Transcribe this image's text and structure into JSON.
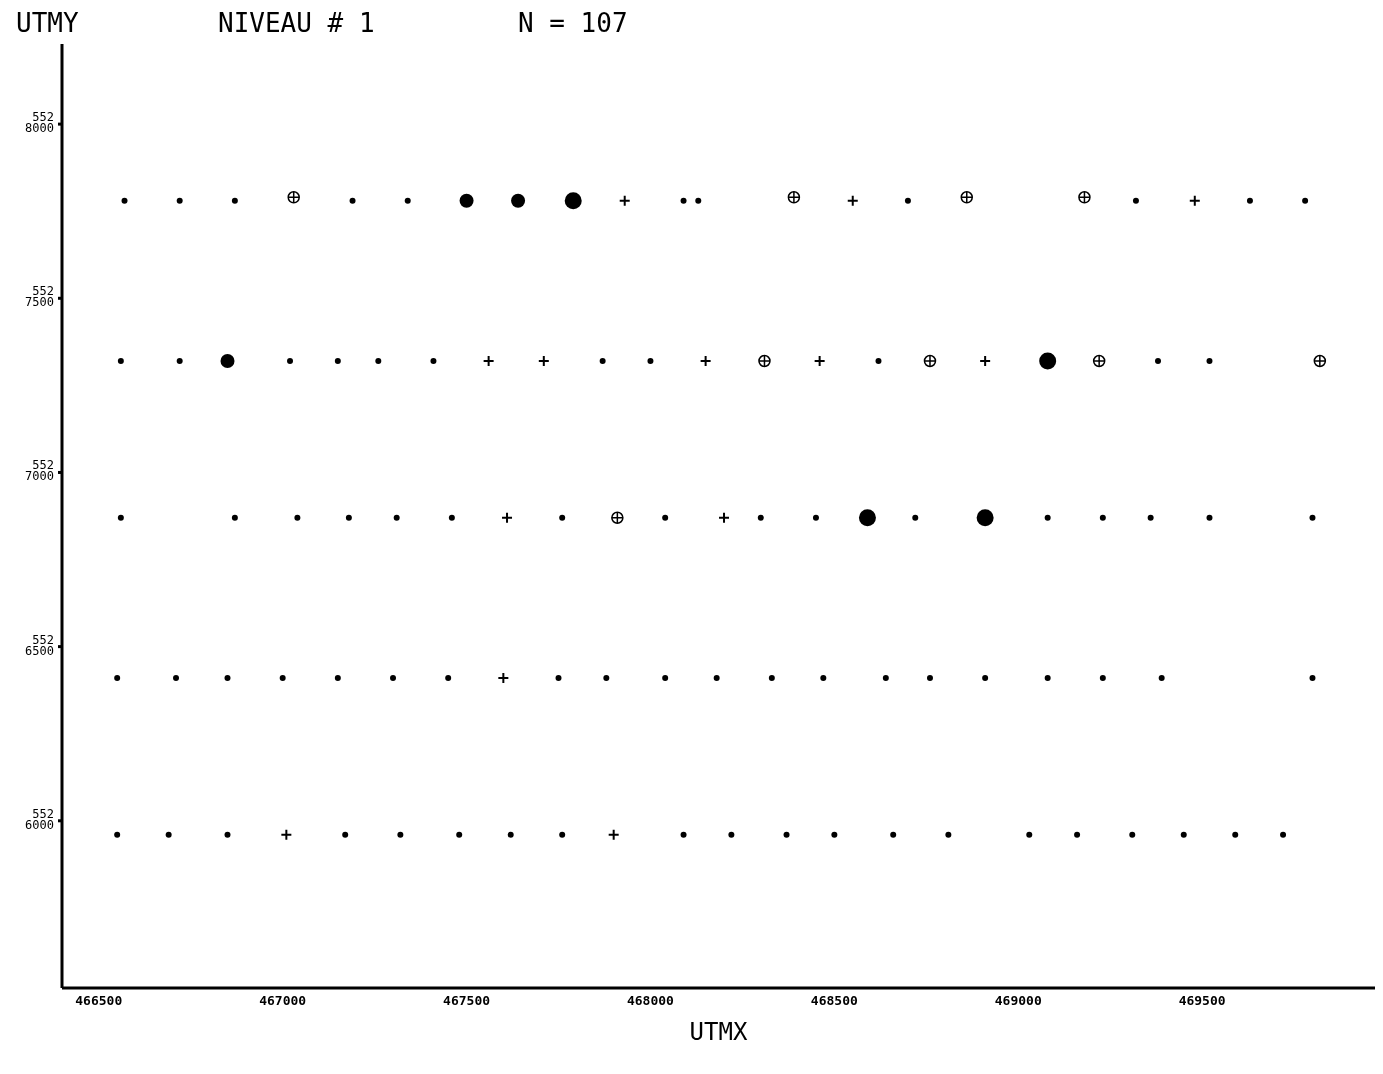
{
  "chart_data": {
    "type": "scatter",
    "title": "NIVEAU # 1",
    "subtitle": "N = 107",
    "xlabel": "UTMX",
    "ylabel": "UTMY",
    "xlim": [
      466400,
      469970
    ],
    "ylim": [
      5525520,
      5528230
    ],
    "xticks": [
      466500,
      467000,
      467500,
      468000,
      468500,
      469000,
      469500
    ],
    "yticks": [
      5526000,
      5526500,
      5527000,
      5527500,
      5528000
    ],
    "grid": false,
    "legend": false,
    "series": [
      {
        "color": "#000000",
        "marker": "circle",
        "x": [
          466570,
          466720,
          466870,
          467190,
          467340,
          468090,
          468130,
          468700,
          469320,
          469630,
          469780,
          466560,
          466720,
          467020,
          467150,
          467260,
          467410,
          467870,
          468000,
          468620,
          469380,
          469520,
          466560,
          466870,
          467040,
          467180,
          467310,
          467460,
          467760,
          468040,
          468300,
          468450,
          468720,
          469080,
          469230,
          469360,
          469520,
          469800,
          466550,
          466710,
          466850,
          467000,
          467150,
          467300,
          467450,
          467750,
          467880,
          468040,
          468180,
          468330,
          468470,
          468640,
          468760,
          468910,
          469080,
          469230,
          469390,
          469800,
          466550,
          466690,
          466850,
          467170,
          467320,
          467480,
          467620,
          467760,
          468090,
          468220,
          468370,
          468500,
          468660,
          468810,
          469030,
          469160,
          469310,
          469450,
          469590,
          469720
        ],
        "values": [
          5527780,
          5527780,
          5527780,
          5527780,
          5527780,
          5527780,
          5527780,
          5527780,
          5527780,
          5527780,
          5527780,
          5527320,
          5527320,
          5527320,
          5527320,
          5527320,
          5527320,
          5527320,
          5527320,
          5527320,
          5527320,
          5527320,
          5526870,
          5526870,
          5526870,
          5526870,
          5526870,
          5526870,
          5526870,
          5526870,
          5526870,
          5526870,
          5526870,
          5526870,
          5526870,
          5526870,
          5526870,
          5526870,
          5526410,
          5526410,
          5526410,
          5526410,
          5526410,
          5526410,
          5526410,
          5526410,
          5526410,
          5526410,
          5526410,
          5526410,
          5526410,
          5526410,
          5526410,
          5526410,
          5526410,
          5526410,
          5526410,
          5526410,
          5525960,
          5525960,
          5525960,
          5525960,
          5525960,
          5525960,
          5525960,
          5525960,
          5525960,
          5525960,
          5525960,
          5525960,
          5525960,
          5525960,
          5525960,
          5525960,
          5525960,
          5525960,
          5525960,
          5525960
        ]
      },
      {
        "color": "#000000",
        "marker": "cross",
        "x": [
          467930,
          468550,
          469480,
          467560,
          467710,
          468150,
          468460,
          468910,
          467610,
          468200,
          467600,
          467010,
          467900
        ],
        "values": [
          5527780,
          5527780,
          5527780,
          5527320,
          5527320,
          5527320,
          5527320,
          5527320,
          5526870,
          5526870,
          5526410,
          5525960,
          5525960
        ]
      },
      {
        "color": "#000000",
        "marker": "circle-cross",
        "x": [
          467030,
          468390,
          468860,
          469180,
          468310,
          468760,
          469220,
          469820,
          467910
        ],
        "values": [
          5527790,
          5527790,
          5527790,
          5527790,
          5527320,
          5527320,
          5527320,
          5527320,
          5526870
        ]
      },
      {
        "color": "#000000",
        "marker": "half-circle",
        "x": [
          467500,
          467640,
          466850
        ],
        "values": [
          5527780,
          5527780,
          5527320
        ]
      },
      {
        "color": "#000000",
        "marker": "filled-circle",
        "x": [
          467790,
          469080,
          468590,
          468910
        ],
        "values": [
          5527780,
          5527320,
          5526870,
          5526870
        ]
      }
    ]
  }
}
